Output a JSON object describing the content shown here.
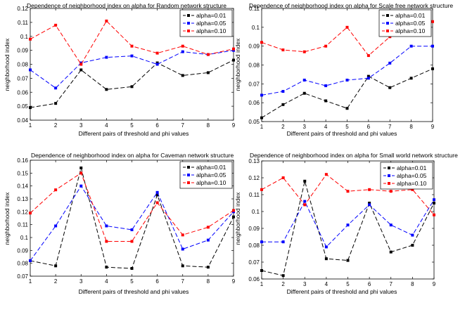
{
  "chart_data": [
    {
      "type": "line",
      "title": "Dependence of neighborhood index on alpha for Random network structure",
      "xlabel": "Different pairs of threshold and phi values",
      "ylabel": "neighborhood index",
      "x": [
        1,
        2,
        3,
        4,
        5,
        6,
        7,
        8,
        9
      ],
      "xlim": [
        1,
        9
      ],
      "ylim": [
        0.04,
        0.12
      ],
      "yticks": [
        0.04,
        0.05,
        0.06,
        0.07,
        0.08,
        0.09,
        0.1,
        0.11,
        0.12
      ],
      "ytick_labels": [
        "0.04",
        "0.05",
        "0.06",
        "0.07",
        "0.08",
        "0.09",
        "0.1",
        "0.11",
        "0.12"
      ],
      "legend": "top-right",
      "series": [
        {
          "name": "alpha=0.01",
          "color": "#000000",
          "values": [
            0.049,
            0.052,
            0.076,
            0.062,
            0.064,
            0.081,
            0.072,
            0.074,
            0.083
          ]
        },
        {
          "name": "alpha=0.05",
          "color": "#0000ff",
          "values": [
            0.076,
            0.063,
            0.081,
            0.085,
            0.086,
            0.08,
            0.089,
            0.087,
            0.09
          ]
        },
        {
          "name": "alpha=0.10",
          "color": "#ff0000",
          "values": [
            0.098,
            0.108,
            0.08,
            0.111,
            0.093,
            0.088,
            0.093,
            0.087,
            0.091
          ]
        }
      ]
    },
    {
      "type": "line",
      "title": "Dependence of neighborhood index on alpha for Scale free network structure",
      "xlabel": "Different pairs of threshold and phi values",
      "ylabel": "neighborhood index",
      "x": [
        1,
        2,
        3,
        4,
        5,
        6,
        7,
        8,
        9
      ],
      "xlim": [
        1,
        9
      ],
      "ylim": [
        0.05,
        0.11
      ],
      "yticks": [
        0.05,
        0.06,
        0.07,
        0.08,
        0.09,
        0.1,
        0.11
      ],
      "ytick_labels": [
        "0.05",
        "0.06",
        "0.07",
        "0.08",
        "0.09",
        "0.1",
        "0.11"
      ],
      "legend": "top-right",
      "series": [
        {
          "name": "alpha=0.01",
          "color": "#000000",
          "values": [
            0.052,
            0.059,
            0.065,
            0.061,
            0.057,
            0.074,
            0.068,
            0.073,
            0.078
          ]
        },
        {
          "name": "alpha=0.05",
          "color": "#0000ff",
          "values": [
            0.064,
            0.066,
            0.072,
            0.069,
            0.072,
            0.073,
            0.081,
            0.09,
            0.09
          ]
        },
        {
          "name": "alpha=0.10",
          "color": "#ff0000",
          "values": [
            0.092,
            0.088,
            0.087,
            0.09,
            0.1,
            0.085,
            0.095,
            0.098,
            0.103
          ]
        }
      ]
    },
    {
      "type": "line",
      "title": "Dependence of neighborhood index on alpha for Caveman network structure",
      "xlabel": "Different pairs of threshold and phi values",
      "ylabel": "neighborhood index",
      "x": [
        1,
        2,
        3,
        4,
        5,
        6,
        7,
        8,
        9
      ],
      "xlim": [
        1,
        9
      ],
      "ylim": [
        0.07,
        0.16
      ],
      "yticks": [
        0.07,
        0.08,
        0.09,
        0.1,
        0.11,
        0.12,
        0.13,
        0.14,
        0.15,
        0.16
      ],
      "ytick_labels": [
        "0.07",
        "0.08",
        "0.09",
        "0.1",
        "0.11",
        "0.12",
        "0.13",
        "0.14",
        "0.15",
        "0.16"
      ],
      "legend": "top-right",
      "series": [
        {
          "name": "alpha=0.01",
          "color": "#000000",
          "values": [
            0.082,
            0.078,
            0.154,
            0.077,
            0.076,
            0.133,
            0.078,
            0.077,
            0.116
          ]
        },
        {
          "name": "alpha=0.05",
          "color": "#0000ff",
          "values": [
            0.082,
            0.109,
            0.14,
            0.109,
            0.106,
            0.135,
            0.091,
            0.098,
            0.12
          ]
        },
        {
          "name": "alpha=0.10",
          "color": "#ff0000",
          "values": [
            0.119,
            0.137,
            0.15,
            0.097,
            0.097,
            0.127,
            0.102,
            0.108,
            0.121
          ]
        }
      ]
    },
    {
      "type": "line",
      "title": "Dependence of neighborhood index on alpha for Small world network structure",
      "xlabel": "Different pairs of threshold and phi values",
      "ylabel": "neighborhood index",
      "x": [
        1,
        2,
        3,
        4,
        5,
        6,
        7,
        8,
        9
      ],
      "xlim": [
        1,
        9
      ],
      "ylim": [
        0.06,
        0.13
      ],
      "yticks": [
        0.06,
        0.07,
        0.08,
        0.09,
        0.1,
        0.11,
        0.12,
        0.13
      ],
      "ytick_labels": [
        "0.06",
        "0.07",
        "0.08",
        "0.09",
        "0.1",
        "0.11",
        "0.12",
        "0.13"
      ],
      "legend": "top-right",
      "series": [
        {
          "name": "alpha=0.01",
          "color": "#000000",
          "values": [
            0.065,
            0.062,
            0.118,
            0.072,
            0.071,
            0.105,
            0.076,
            0.08,
            0.105
          ]
        },
        {
          "name": "alpha=0.05",
          "color": "#0000ff",
          "values": [
            0.082,
            0.082,
            0.106,
            0.079,
            0.092,
            0.104,
            0.092,
            0.086,
            0.107
          ]
        },
        {
          "name": "alpha=0.10",
          "color": "#ff0000",
          "values": [
            0.113,
            0.12,
            0.104,
            0.122,
            0.112,
            0.113,
            0.112,
            0.113,
            0.098
          ]
        }
      ]
    }
  ]
}
